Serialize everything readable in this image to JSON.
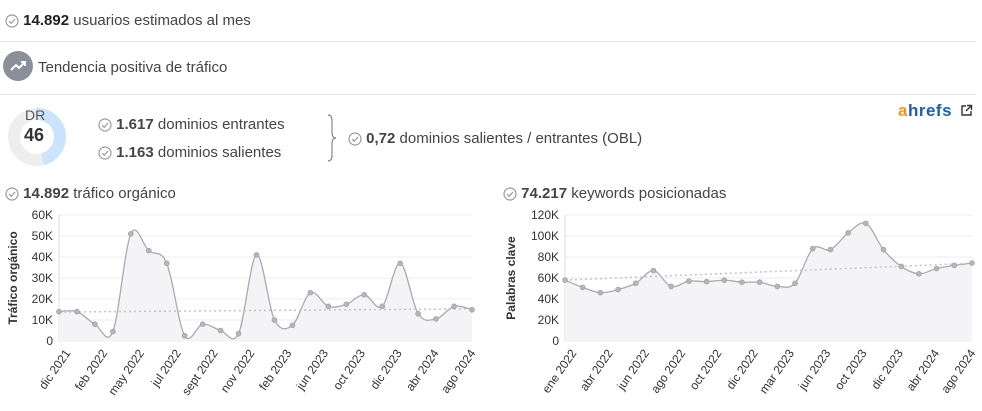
{
  "summary": {
    "monthly_users_value": "14.892",
    "monthly_users_label": "usuarios estimados al mes",
    "trend_label": "Tendencia positiva de tráfico"
  },
  "domain_rating": {
    "label": "DR",
    "value": "46",
    "fraction": 0.46
  },
  "links": {
    "inbound_value": "1.617",
    "inbound_label": "dominios entrantes",
    "outbound_value": "1.163",
    "outbound_label": "dominios salientes",
    "obl_value": "0,72",
    "obl_label": "dominios salientes / entrantes (OBL)"
  },
  "brand": {
    "a": "a",
    "rest": "hrefs",
    "colors": {
      "a": "#f7941d",
      "rest": "#1a5fb4"
    }
  },
  "colors": {
    "check": "#9a9a9a",
    "line": "#a9a9b3",
    "trend": "#c4c4c4",
    "dr_ring": "#c9e4fb",
    "dr_track": "#eeeeee"
  },
  "chart_data": [
    {
      "type": "line",
      "title_value": "14.892",
      "title_label": "tráfico orgánico",
      "ylabel": "Tráfico orgánico",
      "ylim": [
        0,
        60000
      ],
      "yticks": [
        0,
        10000,
        20000,
        30000,
        40000,
        50000,
        60000
      ],
      "ytick_labels": [
        "0",
        "10K",
        "20K",
        "30K",
        "40K",
        "50K",
        "60K"
      ],
      "xtick_labels": [
        "dic 2021",
        "feb 2022",
        "may 2022",
        "jul 2022",
        "sept 2022",
        "nov 2022",
        "feb 2023",
        "jun 2023",
        "oct 2023",
        "dic 2023",
        "abr 2024",
        "ago 2024"
      ],
      "values": [
        14000,
        14000,
        8000,
        4500,
        51000,
        43000,
        37000,
        2500,
        8000,
        5000,
        3500,
        41000,
        10000,
        7500,
        23000,
        16500,
        17500,
        22000,
        16500,
        37000,
        13000,
        10500,
        16500,
        14892
      ],
      "trend": [
        13800,
        15300
      ]
    },
    {
      "type": "line",
      "title_value": "74.217",
      "title_label": "keywords posicionadas",
      "ylabel": "Palabras clave",
      "ylim": [
        0,
        120000
      ],
      "yticks": [
        0,
        20000,
        40000,
        60000,
        80000,
        100000,
        120000
      ],
      "ytick_labels": [
        "0",
        "20K",
        "40K",
        "60K",
        "80K",
        "100K",
        "120K"
      ],
      "xtick_labels": [
        "ene 2022",
        "abr 2022",
        "jun 2022",
        "ago 2022",
        "oct 2022",
        "dic 2022",
        "mar 2023",
        "jun 2023",
        "oct 2023",
        "dic 2023",
        "abr 2024",
        "ago 2024"
      ],
      "values": [
        58000,
        51000,
        46000,
        49000,
        55000,
        67000,
        52000,
        57000,
        56500,
        58000,
        56000,
        56000,
        52000,
        55000,
        88000,
        87000,
        103000,
        112000,
        87000,
        71000,
        64000,
        69000,
        72000,
        74217
      ],
      "trend": [
        58000,
        74000
      ]
    }
  ]
}
